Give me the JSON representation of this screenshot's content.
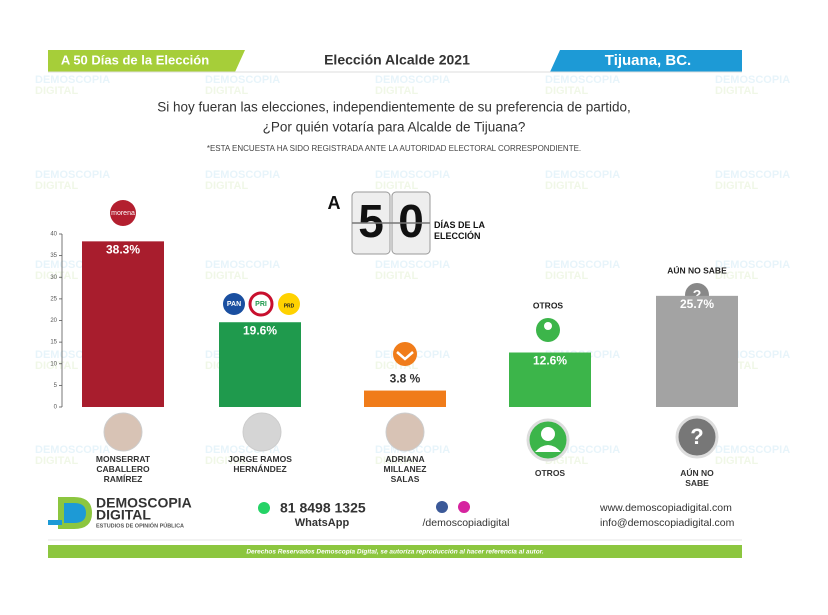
{
  "header": {
    "left": "A 50 Días de la Elección",
    "center": "Elección Alcalde 2021",
    "right": "Tijuana, BC."
  },
  "question": [
    "Si hoy fueran las elecciones, independientemente de su preferencia de partido,",
    "¿Por quién votaría para Alcalde de Tijuana?"
  ],
  "note": "*ESTA ENCUESTA HA SIDO REGISTRADA ANTE LA AUTORIDAD ELECTORAL CORRESPONDIENTE.",
  "countdown": {
    "prefix": "A",
    "digits": [
      "5",
      "0"
    ],
    "label": "DÍAS DE LA ELECCIÓN"
  },
  "party_logos": [
    "morena",
    "PAN",
    "PRI",
    "PRD"
  ],
  "chart_data": {
    "type": "bar",
    "categories": [
      "MONSERRAT CABALLERO RAMÍREZ",
      "JORGE RAMOS HERNÁNDEZ",
      "ADRIANA MILLANEZ SALAS",
      "OTROS",
      "AÚN NO SABE"
    ],
    "values": [
      38.3,
      19.6,
      3.8,
      12.6,
      25.7
    ],
    "value_labels": [
      "38.3%",
      "19.6%",
      "3.8 %",
      "12.6%",
      "25.7%"
    ],
    "colors": [
      "#a81d2d",
      "#1f9a4d",
      "#f07c1a",
      "#3cb54a",
      "#a3a3a3"
    ],
    "ylim": [
      0,
      40
    ],
    "yticks": [
      0,
      5,
      10,
      15,
      20,
      25,
      30,
      35,
      40
    ]
  },
  "footer": {
    "brand": "DEMOSCOPIA",
    "brand2": "DIGITAL",
    "tagline": "ESTUDIOS DE OPINIÓN PÚBLICA",
    "phone": "81 8498 1325",
    "whatsapp": "WhatsApp",
    "social": "/demoscopiadigital",
    "web": "www.demoscopiadigital.com",
    "email": "info@demoscopiadigital.com",
    "rights": "Derechos Reservados Demoscopia Digital, se autoriza reproducción al hacer referencia al autor."
  },
  "watermark": [
    "DEMOSCOPIA",
    "DIGITAL"
  ]
}
